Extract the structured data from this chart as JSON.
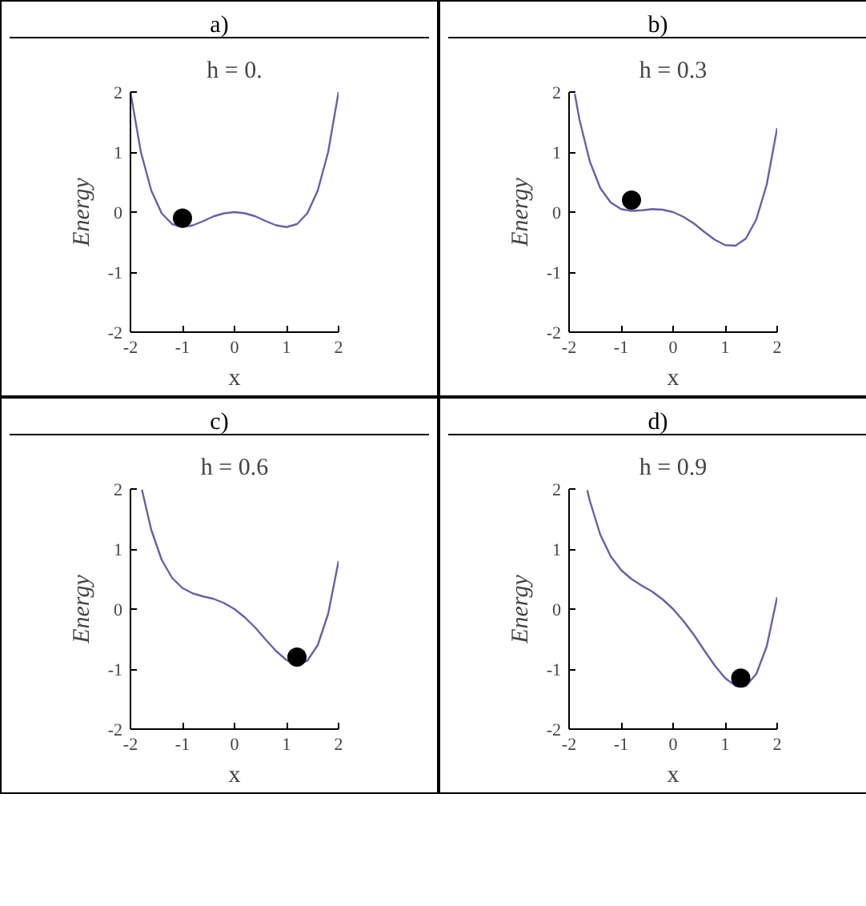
{
  "chart_data": [
    {
      "type": "line",
      "title": "a)",
      "subtitle": "h = 0.",
      "xlabel": "x",
      "ylabel": "Energy",
      "xlim": [
        -2,
        2
      ],
      "ylim": [
        -2,
        2
      ],
      "xticks": [
        -2,
        -1,
        0,
        1,
        2
      ],
      "yticks": [
        -2,
        -1,
        0,
        1,
        2
      ],
      "grid": false,
      "series": [
        {
          "color": "#6a5fa8",
          "x": [
            -2,
            -1.8,
            -1.6,
            -1.4,
            -1.2,
            -1,
            -0.8,
            -0.6,
            -0.4,
            -0.2,
            0,
            0.2,
            0.4,
            0.6,
            0.8,
            1,
            1.2,
            1.4,
            1.6,
            1.8,
            2
          ],
          "values": [
            2,
            1.0,
            0.36,
            -0.02,
            -0.2,
            -0.25,
            -0.22,
            -0.15,
            -0.07,
            -0.02,
            0,
            -0.02,
            -0.07,
            -0.15,
            -0.22,
            -0.25,
            -0.2,
            -0.02,
            0.36,
            1.0,
            2
          ]
        },
        {
          "type": "scatter",
          "marker": "circle",
          "color": "#000000",
          "x": [
            -1
          ],
          "values": [
            -0.1
          ]
        }
      ]
    },
    {
      "type": "line",
      "title": "b)",
      "subtitle": "h = 0.3",
      "xlabel": "x",
      "ylabel": "Energy",
      "xlim": [
        -2,
        2
      ],
      "ylim": [
        -2,
        2
      ],
      "xticks": [
        -2,
        -1,
        0,
        1,
        2
      ],
      "yticks": [
        -2,
        -1,
        0,
        1,
        2
      ],
      "grid": false,
      "series": [
        {
          "color": "#6a5fa8",
          "x": [
            -1.89,
            -1.8,
            -1.6,
            -1.4,
            -1.2,
            -1,
            -0.8,
            -0.6,
            -0.4,
            -0.2,
            0,
            0.2,
            0.4,
            0.6,
            0.8,
            1,
            1.2,
            1.4,
            1.6,
            1.8,
            2
          ],
          "values": [
            1.97,
            1.54,
            0.84,
            0.4,
            0.16,
            0.05,
            0.02,
            0.03,
            0.05,
            0.04,
            0,
            -0.08,
            -0.19,
            -0.33,
            -0.46,
            -0.55,
            -0.56,
            -0.44,
            -0.12,
            0.46,
            1.4
          ]
        },
        {
          "type": "scatter",
          "marker": "circle",
          "color": "#000000",
          "x": [
            -0.8
          ],
          "values": [
            0.2
          ]
        }
      ]
    },
    {
      "type": "line",
      "title": "c)",
      "subtitle": "h = 0.6",
      "xlabel": "x",
      "ylabel": "Energy",
      "xlim": [
        -2,
        2
      ],
      "ylim": [
        -2,
        2
      ],
      "xticks": [
        -2,
        -1,
        0,
        1,
        2
      ],
      "yticks": [
        -2,
        -1,
        0,
        1,
        2
      ],
      "grid": false,
      "series": [
        {
          "color": "#6a5fa8",
          "x": [
            -1.78,
            -1.6,
            -1.4,
            -1.2,
            -1,
            -0.8,
            -0.6,
            -0.4,
            -0.2,
            0,
            0.2,
            0.4,
            0.6,
            0.8,
            1,
            1.2,
            1.4,
            1.6,
            1.8,
            2
          ],
          "values": [
            1.99,
            1.32,
            0.82,
            0.52,
            0.35,
            0.26,
            0.21,
            0.17,
            0.1,
            0,
            -0.14,
            -0.31,
            -0.51,
            -0.7,
            -0.85,
            -0.92,
            -0.86,
            -0.6,
            -0.08,
            0.8
          ]
        },
        {
          "type": "scatter",
          "marker": "circle",
          "color": "#000000",
          "x": [
            1.2
          ],
          "values": [
            -0.8
          ]
        }
      ]
    },
    {
      "type": "line",
      "title": "d)",
      "subtitle": "h = 0.9",
      "xlabel": "x",
      "ylabel": "Energy",
      "xlim": [
        -2,
        2
      ],
      "ylim": [
        -2,
        2
      ],
      "xticks": [
        -2,
        -1,
        0,
        1,
        2
      ],
      "yticks": [
        -2,
        -1,
        0,
        1,
        2
      ],
      "grid": false,
      "series": [
        {
          "color": "#6a5fa8",
          "x": [
            -1.65,
            -1.6,
            -1.4,
            -1.2,
            -1,
            -0.8,
            -0.6,
            -0.4,
            -0.2,
            0,
            0.2,
            0.4,
            0.6,
            0.8,
            1,
            1.2,
            1.4,
            1.6,
            1.8,
            2
          ],
          "values": [
            1.98,
            1.8,
            1.24,
            0.88,
            0.65,
            0.5,
            0.39,
            0.29,
            0.16,
            0,
            -0.2,
            -0.43,
            -0.69,
            -0.94,
            -1.15,
            -1.28,
            -1.28,
            -1.08,
            -0.62,
            0.2
          ]
        },
        {
          "type": "scatter",
          "marker": "circle",
          "color": "#000000",
          "x": [
            1.3
          ],
          "values": [
            -1.15
          ]
        }
      ]
    }
  ]
}
